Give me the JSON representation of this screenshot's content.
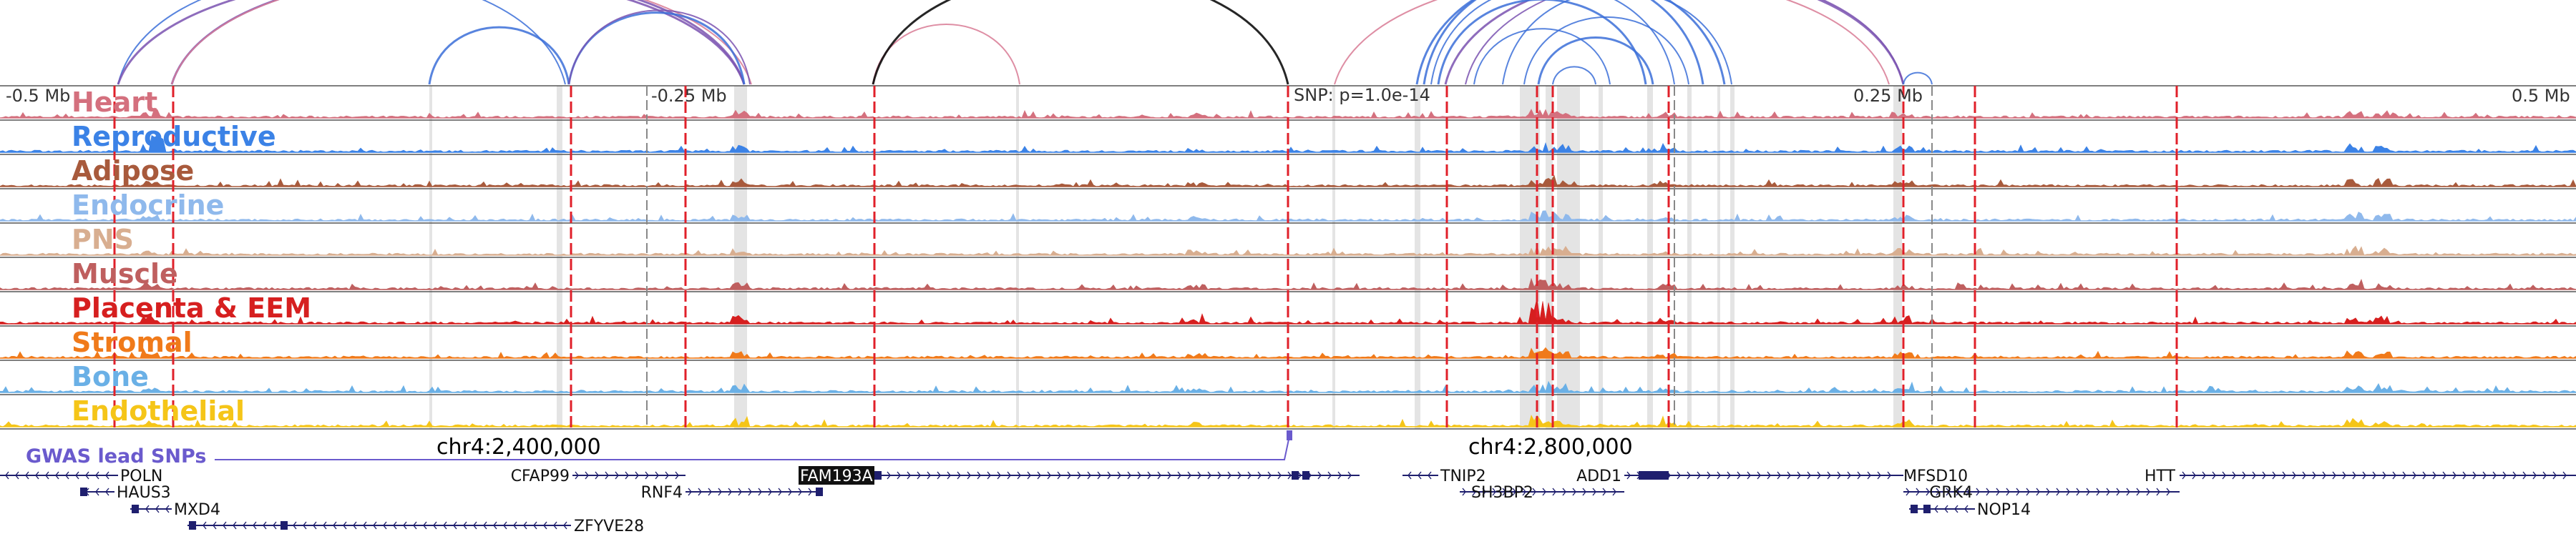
{
  "axis": {
    "left_label": "-0.5 Mb",
    "mid_left_label": "-0.25 Mb",
    "snp_label": "SNP: p=1.0e-14",
    "mid_right_label": "0.25 Mb",
    "right_label": "0.5 Mb"
  },
  "tracks": [
    {
      "name": "Heart",
      "color": "#d4707e"
    },
    {
      "name": "Reproductive",
      "color": "#3b82e6"
    },
    {
      "name": "Adipose",
      "color": "#a85a3c"
    },
    {
      "name": "Endocrine",
      "color": "#8fb9ec"
    },
    {
      "name": "PNS",
      "color": "#d8ae90"
    },
    {
      "name": "Muscle",
      "color": "#bf5f5f"
    },
    {
      "name": "Placenta & EEM",
      "color": "#d61f1f"
    },
    {
      "name": "Stromal",
      "color": "#f07a1a"
    },
    {
      "name": "Bone",
      "color": "#6ab0e6"
    },
    {
      "name": "Endothelial",
      "color": "#f5c518"
    }
  ],
  "gwas": {
    "label": "GWAS lead SNPs",
    "color": "#6a5acd"
  },
  "coordinates": {
    "left": "chr4:2,400,000",
    "right": "chr4:2,800,000"
  },
  "genes": [
    {
      "name": "POLN"
    },
    {
      "name": "HAUS3"
    },
    {
      "name": "MXD4"
    },
    {
      "name": "ZFYVE28"
    },
    {
      "name": "CFAP99"
    },
    {
      "name": "RNF4"
    },
    {
      "name": "FAM193A",
      "highlight": true
    },
    {
      "name": "TNIP2"
    },
    {
      "name": "SH3BP2"
    },
    {
      "name": "ADD1"
    },
    {
      "name": "MFSD10"
    },
    {
      "name": "GRK4"
    },
    {
      "name": "NOP14"
    },
    {
      "name": "HTT"
    }
  ],
  "colors": {
    "loop_blue": "#3b6fd8",
    "loop_purple": "#7a52b0",
    "loop_pink": "#d87a94",
    "loop_black": "#000000",
    "peak_line": "#e0202a",
    "gene_navy": "#1f1f6e"
  }
}
